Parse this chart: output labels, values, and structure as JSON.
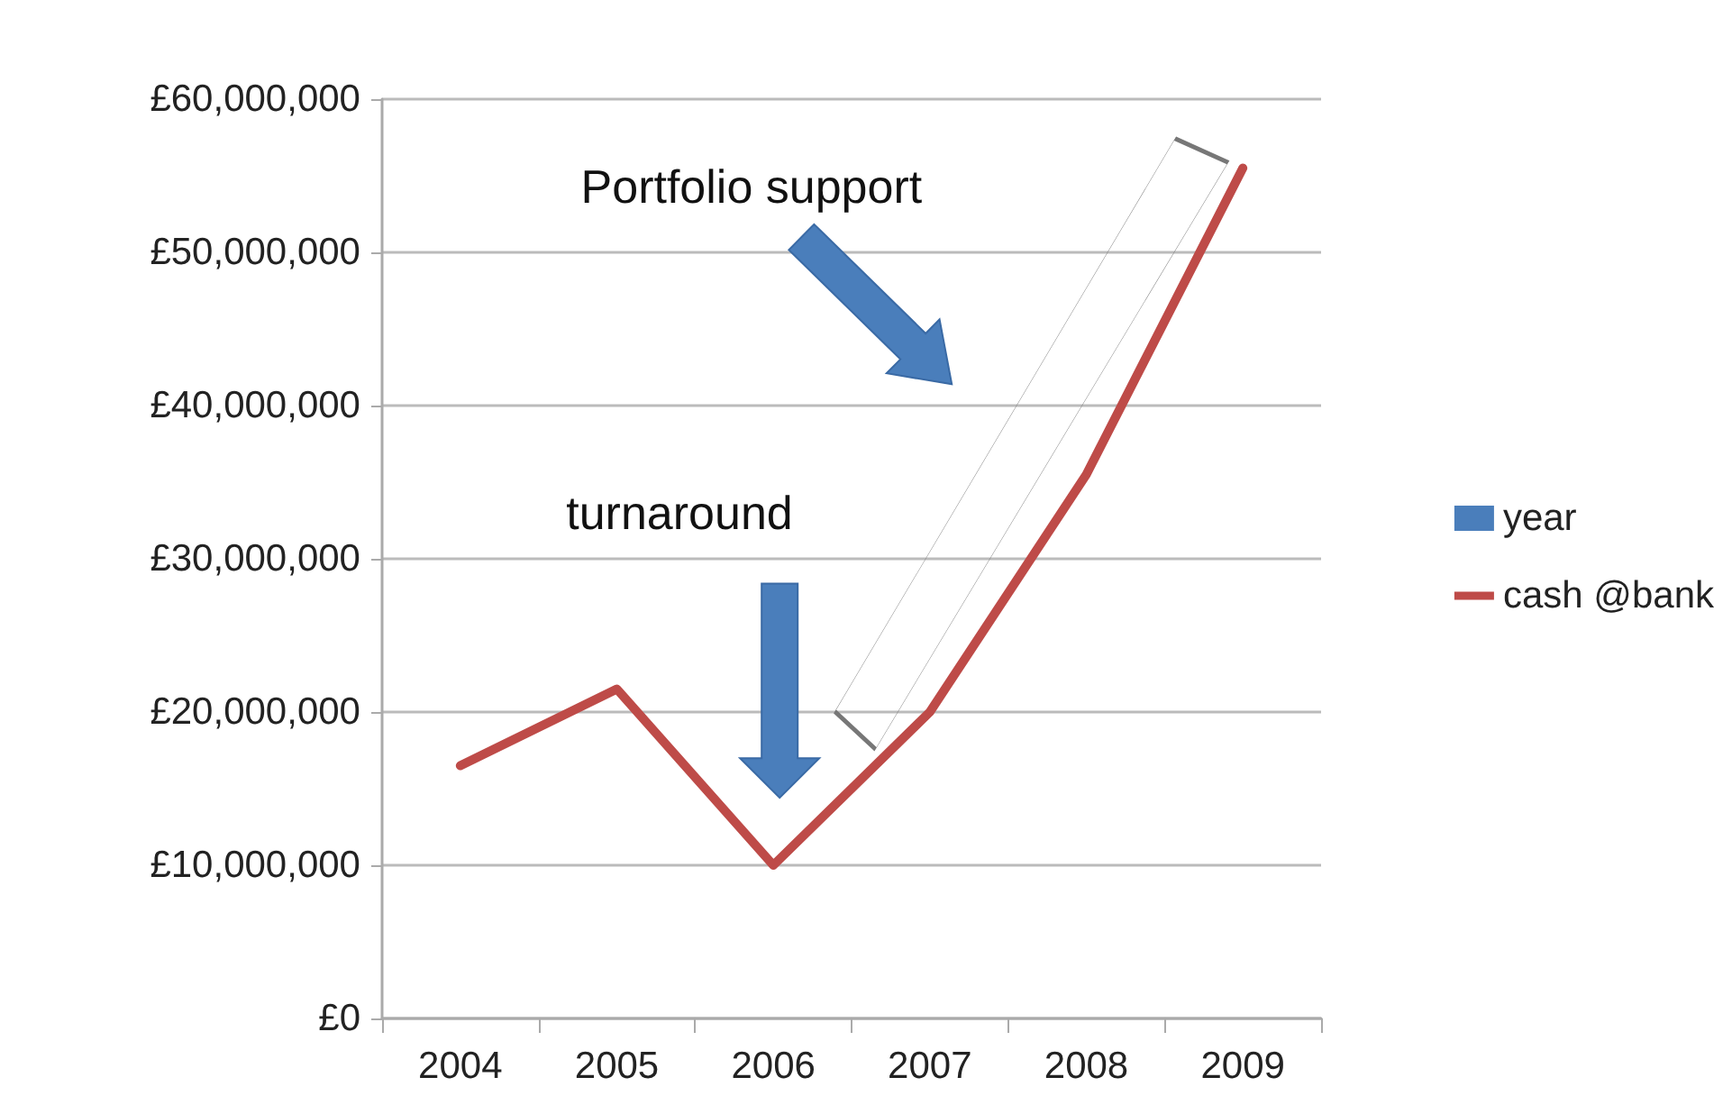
{
  "chart_data": {
    "type": "line",
    "categories": [
      "2004",
      "2005",
      "2006",
      "2007",
      "2008",
      "2009"
    ],
    "series": [
      {
        "name": "year",
        "type": "bar",
        "color": "#4a7ebb",
        "values": [
          null,
          null,
          null,
          null,
          null,
          null
        ]
      },
      {
        "name": "cash @bank",
        "color": "#be4b48",
        "values": [
          16500000,
          21500000,
          10000000,
          20000000,
          35500000,
          55500000
        ]
      }
    ],
    "ylim": [
      0,
      60000000
    ],
    "yticks": [
      {
        "value": 0,
        "label": "£0"
      },
      {
        "value": 10000000,
        "label": "£10,000,000"
      },
      {
        "value": 20000000,
        "label": "£20,000,000"
      },
      {
        "value": 30000000,
        "label": "£30,000,000"
      },
      {
        "value": 40000000,
        "label": "£40,000,000"
      },
      {
        "value": 50000000,
        "label": "£50,000,000"
      },
      {
        "value": 60000000,
        "label": "£60,000,000"
      }
    ],
    "annotations": [
      "Portfolio support",
      "turnaround"
    ],
    "grid": "y",
    "legend": "right",
    "marker": "none",
    "line_style": "solid"
  }
}
